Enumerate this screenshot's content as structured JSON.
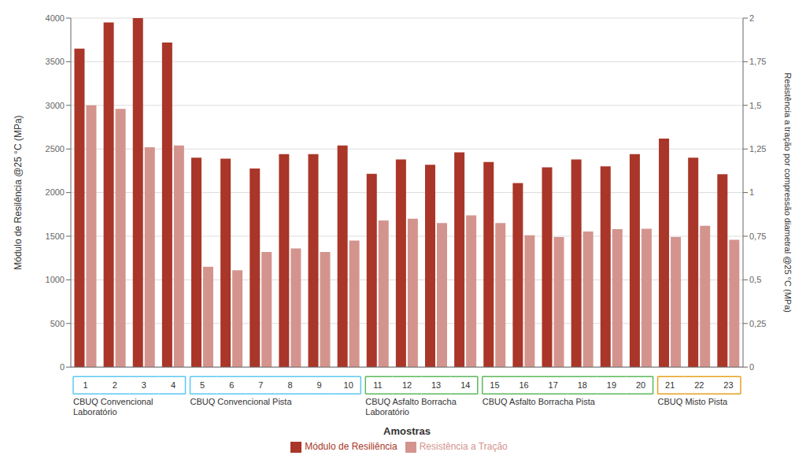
{
  "chart_data": {
    "type": "bar",
    "xlabel": "Amostras",
    "ylabel": "Módulo de Resilência @25 °C (MPa)",
    "y2label": "Resistência a tração por compressão diametral @25 °C (MPa)",
    "categories": [
      "1",
      "2",
      "3",
      "4",
      "5",
      "6",
      "7",
      "8",
      "9",
      "10",
      "11",
      "12",
      "13",
      "14",
      "15",
      "16",
      "17",
      "18",
      "19",
      "20",
      "21",
      "22",
      "23"
    ],
    "groups": [
      {
        "label": "CBUQ Convencional\nLaboratório",
        "categories": [
          "1",
          "2",
          "3",
          "4"
        ],
        "color": "#5BC8F0"
      },
      {
        "label": "CBUQ Convencional Pista",
        "categories": [
          "5",
          "6",
          "7",
          "8",
          "9",
          "10"
        ],
        "color": "#5BC8F0"
      },
      {
        "label": "CBUQ Asfalto Borracha\nLaboratório",
        "categories": [
          "11",
          "12",
          "13",
          "14"
        ],
        "color": "#5CB85C"
      },
      {
        "label": "CBUQ Asfalto Borracha Pista",
        "categories": [
          "15",
          "16",
          "17",
          "18",
          "19",
          "20"
        ],
        "color": "#5CB85C"
      },
      {
        "label": "CBUQ Misto Pista",
        "categories": [
          "21",
          "22",
          "23"
        ],
        "color": "#E8A020"
      }
    ],
    "series": [
      {
        "name": "Módulo de Resiliência",
        "color": "#A93628",
        "values": [
          3650,
          3950,
          4000,
          3720,
          2400,
          2390,
          2275,
          2440,
          2440,
          2540,
          2215,
          2380,
          2320,
          2460,
          2350,
          2110,
          2290,
          2380,
          2300,
          2440,
          2620,
          2400,
          2210
        ]
      },
      {
        "name": "Resistência a Tração",
        "color": "#D4948E",
        "values": [
          3000,
          2960,
          2520,
          2540,
          1150,
          1110,
          1320,
          1360,
          1320,
          1450,
          1680,
          1700,
          1650,
          1740,
          1650,
          1510,
          1490,
          1555,
          1580,
          1585,
          1490,
          1620,
          1460
        ]
      }
    ],
    "ylim": [
      0,
      4000
    ],
    "yticks": [
      0,
      500,
      1000,
      1500,
      2000,
      2500,
      3000,
      3500,
      4000
    ],
    "y2lim": [
      0,
      2.0
    ],
    "y2ticks": [
      0,
      {
        "value": 0.25,
        "label": "0,25"
      },
      {
        "value": 0.5,
        "label": "0,5"
      },
      {
        "value": 0.75,
        "label": "0,75"
      },
      1,
      {
        "value": 1.25,
        "label": "1,25"
      },
      {
        "value": 1.5,
        "label": "1,5"
      },
      {
        "value": 1.75,
        "label": "1,75"
      },
      2
    ],
    "grid": true,
    "legend": "bottom"
  }
}
